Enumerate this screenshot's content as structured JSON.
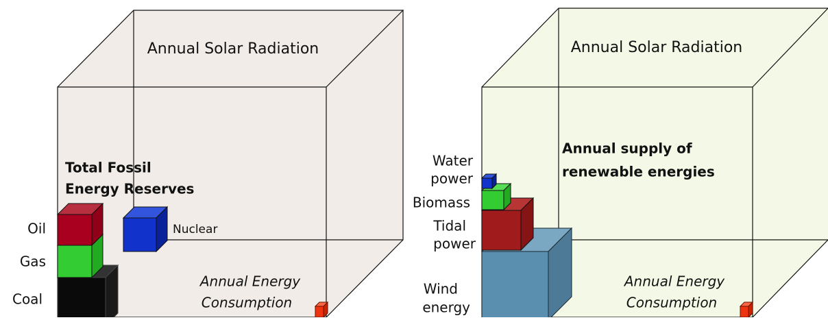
{
  "panels": [
    {
      "title": "Annual Solar Radiation",
      "heading": [
        "Total Fossil",
        "Energy Reserves"
      ],
      "items": [
        [
          "Oil"
        ],
        [
          "Gas"
        ],
        [
          "Coal"
        ],
        [
          "Nuclear"
        ]
      ],
      "consumption": [
        "Annual Energy",
        "Consumption"
      ]
    },
    {
      "title": "Annual Solar Radiation",
      "heading": [
        "Annual supply of",
        "renewable energies"
      ],
      "items": [
        [
          "Water",
          "power"
        ],
        [
          "Biomass"
        ],
        [
          "Tidal",
          "power"
        ],
        [
          "Wind",
          "energy"
        ]
      ],
      "consumption": [
        "Annual Energy",
        "Consumption"
      ]
    }
  ]
}
